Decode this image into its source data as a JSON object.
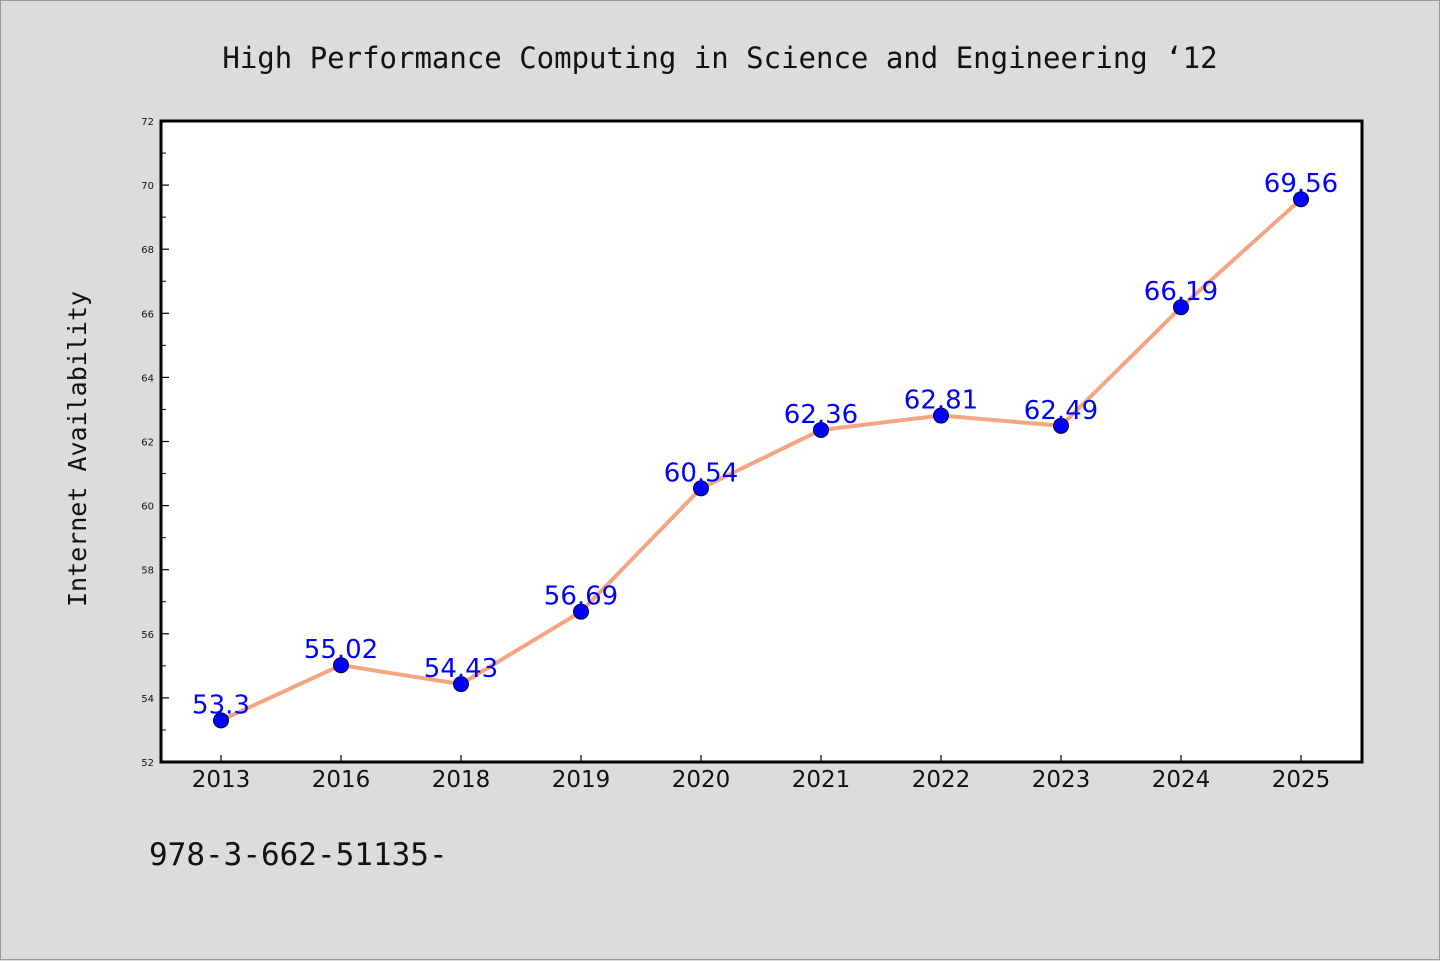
{
  "chart_data": {
    "type": "line",
    "title": "High Performance Computing in Science and Engineering  ‘12",
    "xlabel": "",
    "ylabel": "Internet Availability",
    "categories": [
      "2013",
      "2016",
      "2018",
      "2019",
      "2020",
      "2021",
      "2022",
      "2023",
      "2024",
      "2025"
    ],
    "series": [
      {
        "values": [
          53.3,
          55.02,
          54.43,
          56.69,
          60.54,
          62.36,
          62.81,
          62.49,
          66.19,
          69.56
        ]
      }
    ],
    "data_labels": [
      "53.3",
      "55.02",
      "54.43",
      "56.69",
      "60.54",
      "62.36",
      "62.81",
      "62.49",
      "66.19",
      "69.56"
    ],
    "ylim": [
      52,
      72
    ],
    "yticks": [
      52,
      54,
      56,
      58,
      60,
      62,
      64,
      66,
      68,
      70,
      72
    ],
    "grid": false,
    "legend": "none",
    "footer_text": "978-3-662-51135-",
    "colors": {
      "background": "#dcdcdc",
      "plot_area": "#ffffff",
      "line": "#f4a582",
      "marker": "#0000ff",
      "label": "#0000ff",
      "text": "#111111"
    }
  }
}
